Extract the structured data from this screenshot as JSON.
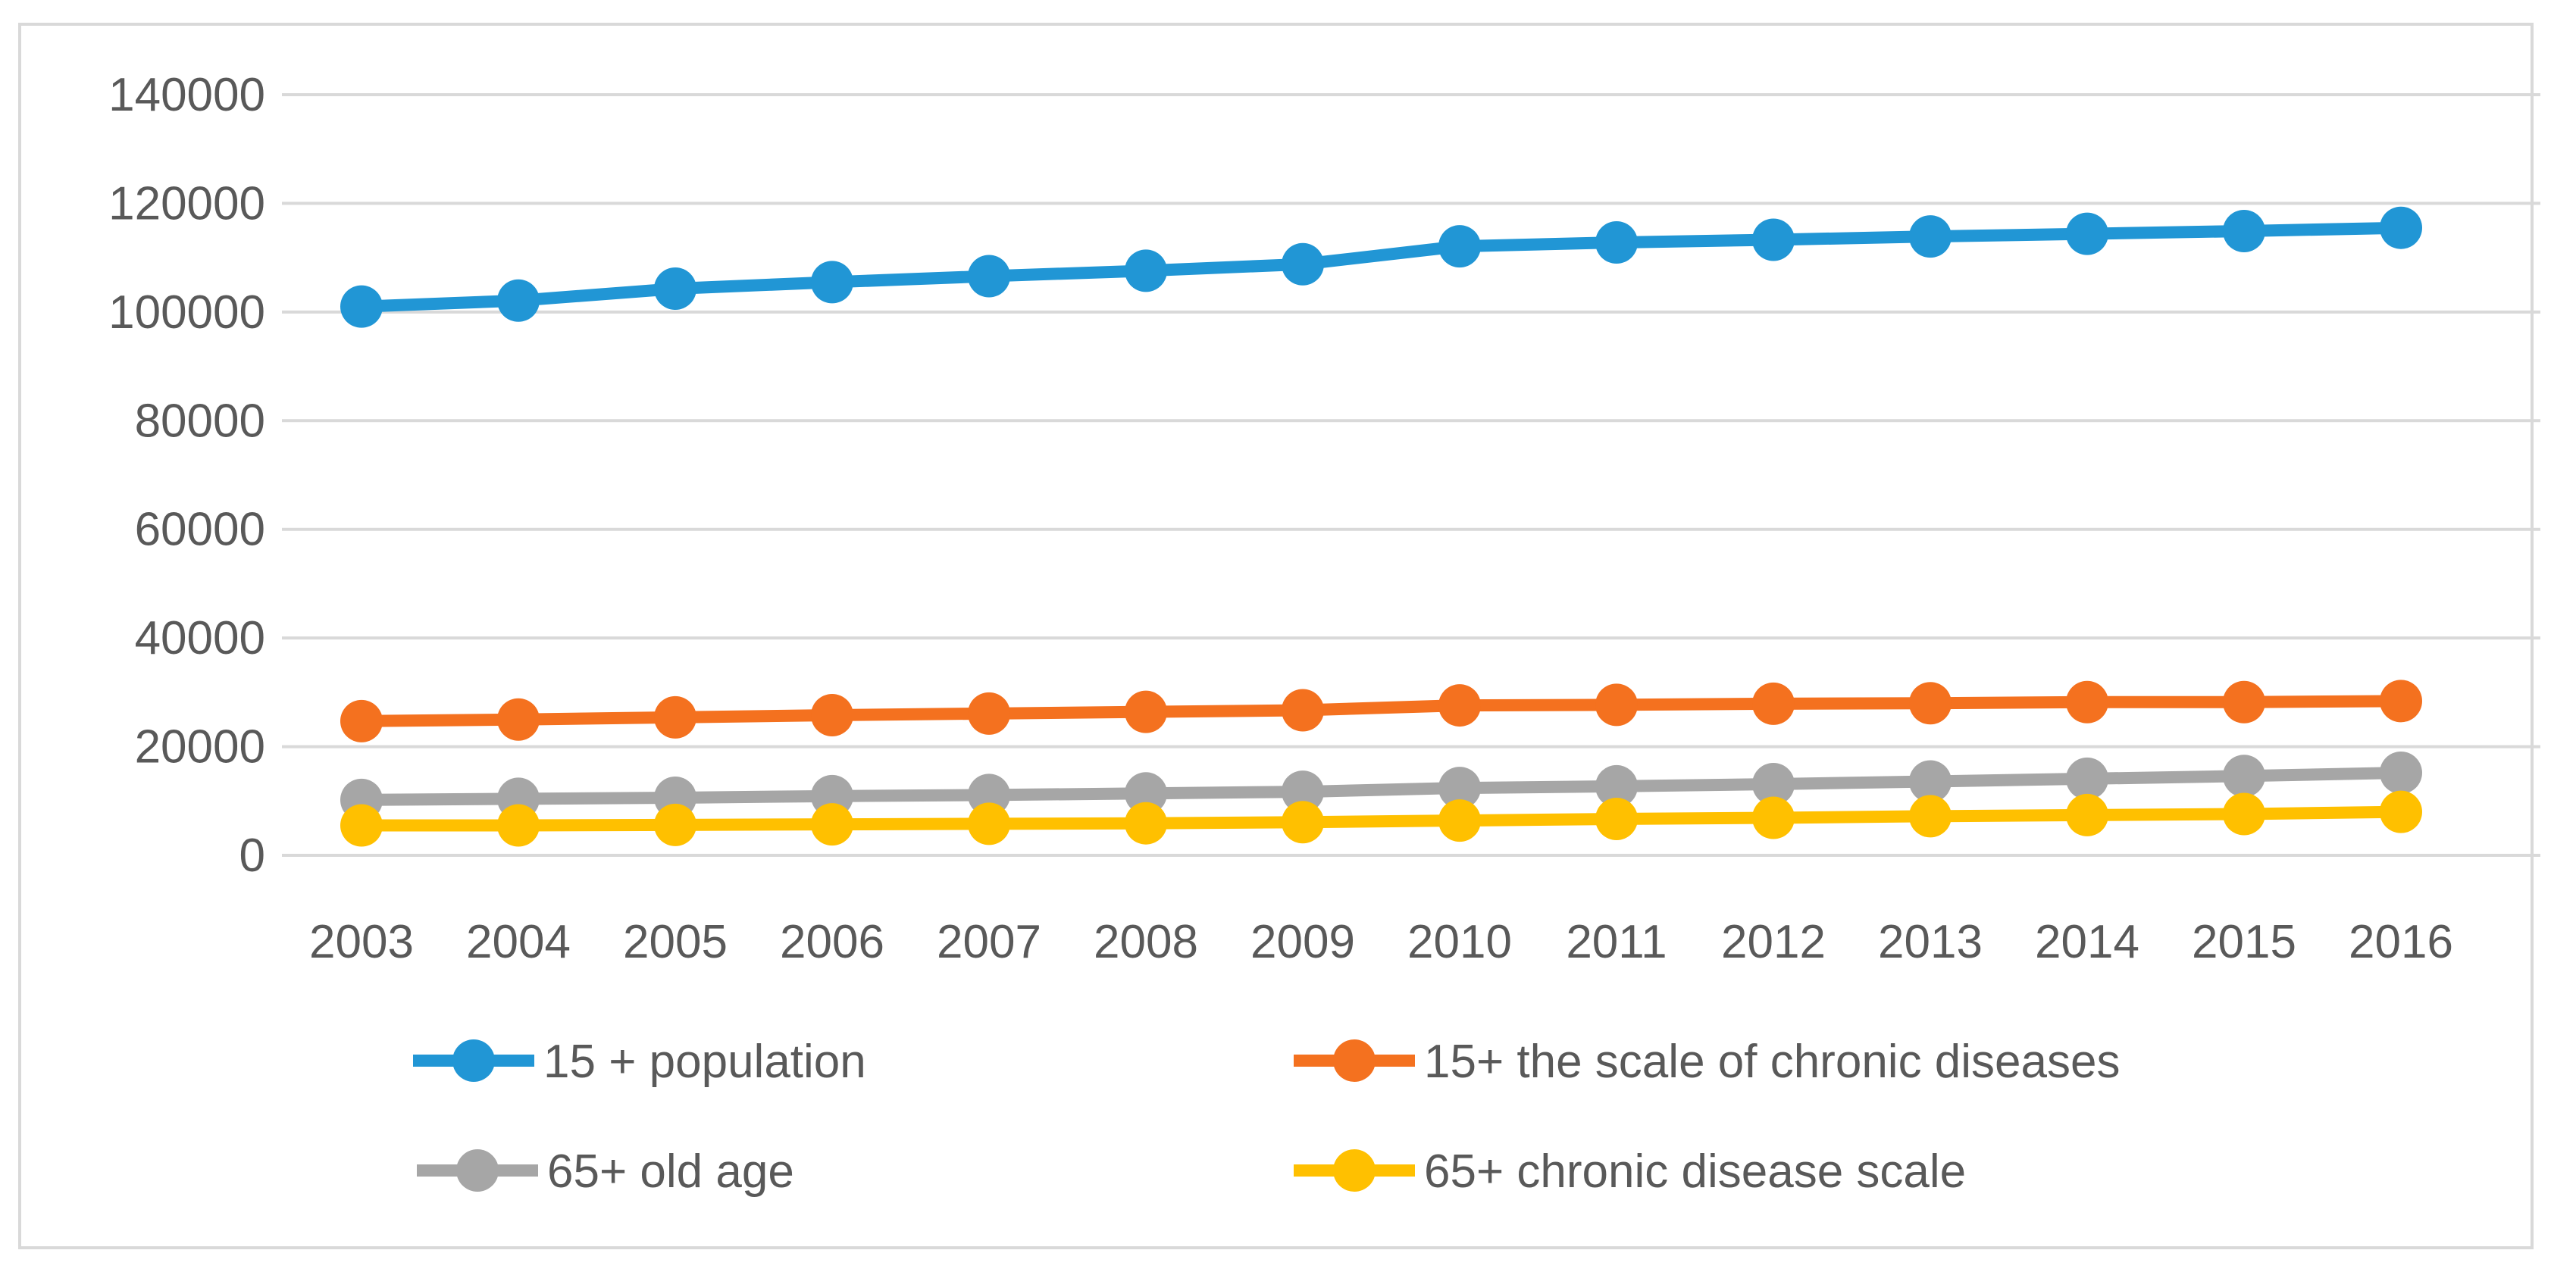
{
  "figure": {
    "background": "#ffffff",
    "frame_color": "#d9d9d9",
    "text_color": "#595959",
    "gridline_color": "#d9d9d9"
  },
  "chart_data": {
    "type": "line",
    "title": "",
    "xlabel": "",
    "ylabel": "",
    "grid": true,
    "legend_position": "bottom",
    "x": [
      2003,
      2004,
      2005,
      2006,
      2007,
      2008,
      2009,
      2010,
      2011,
      2012,
      2013,
      2014,
      2015,
      2016
    ],
    "ylim": [
      0,
      140000
    ],
    "ytick_step": 20000,
    "yticks": [
      0,
      20000,
      40000,
      60000,
      80000,
      100000,
      120000,
      140000
    ],
    "series": [
      {
        "name": "15 + population",
        "color": "#2196d5",
        "values": [
          101000,
          102100,
          104300,
          105500,
          106600,
          107600,
          108800,
          112100,
          112800,
          113300,
          113900,
          114400,
          114900,
          115500
        ]
      },
      {
        "name": "15+ the scale of chronic diseases",
        "color": "#f4711f",
        "values": [
          24700,
          25000,
          25400,
          25800,
          26100,
          26400,
          26700,
          27600,
          27700,
          27900,
          28000,
          28200,
          28200,
          28400
        ]
      },
      {
        "name": "65+ old age",
        "color": "#a6a6a6",
        "values": [
          10200,
          10400,
          10600,
          10900,
          11100,
          11400,
          11700,
          12400,
          12700,
          13100,
          13600,
          14100,
          14600,
          15200
        ]
      },
      {
        "name": "65+ chronic disease scale",
        "color": "#ffc000",
        "values": [
          5500,
          5500,
          5600,
          5700,
          5800,
          5900,
          6100,
          6400,
          6700,
          6900,
          7200,
          7400,
          7600,
          8000
        ]
      }
    ]
  }
}
